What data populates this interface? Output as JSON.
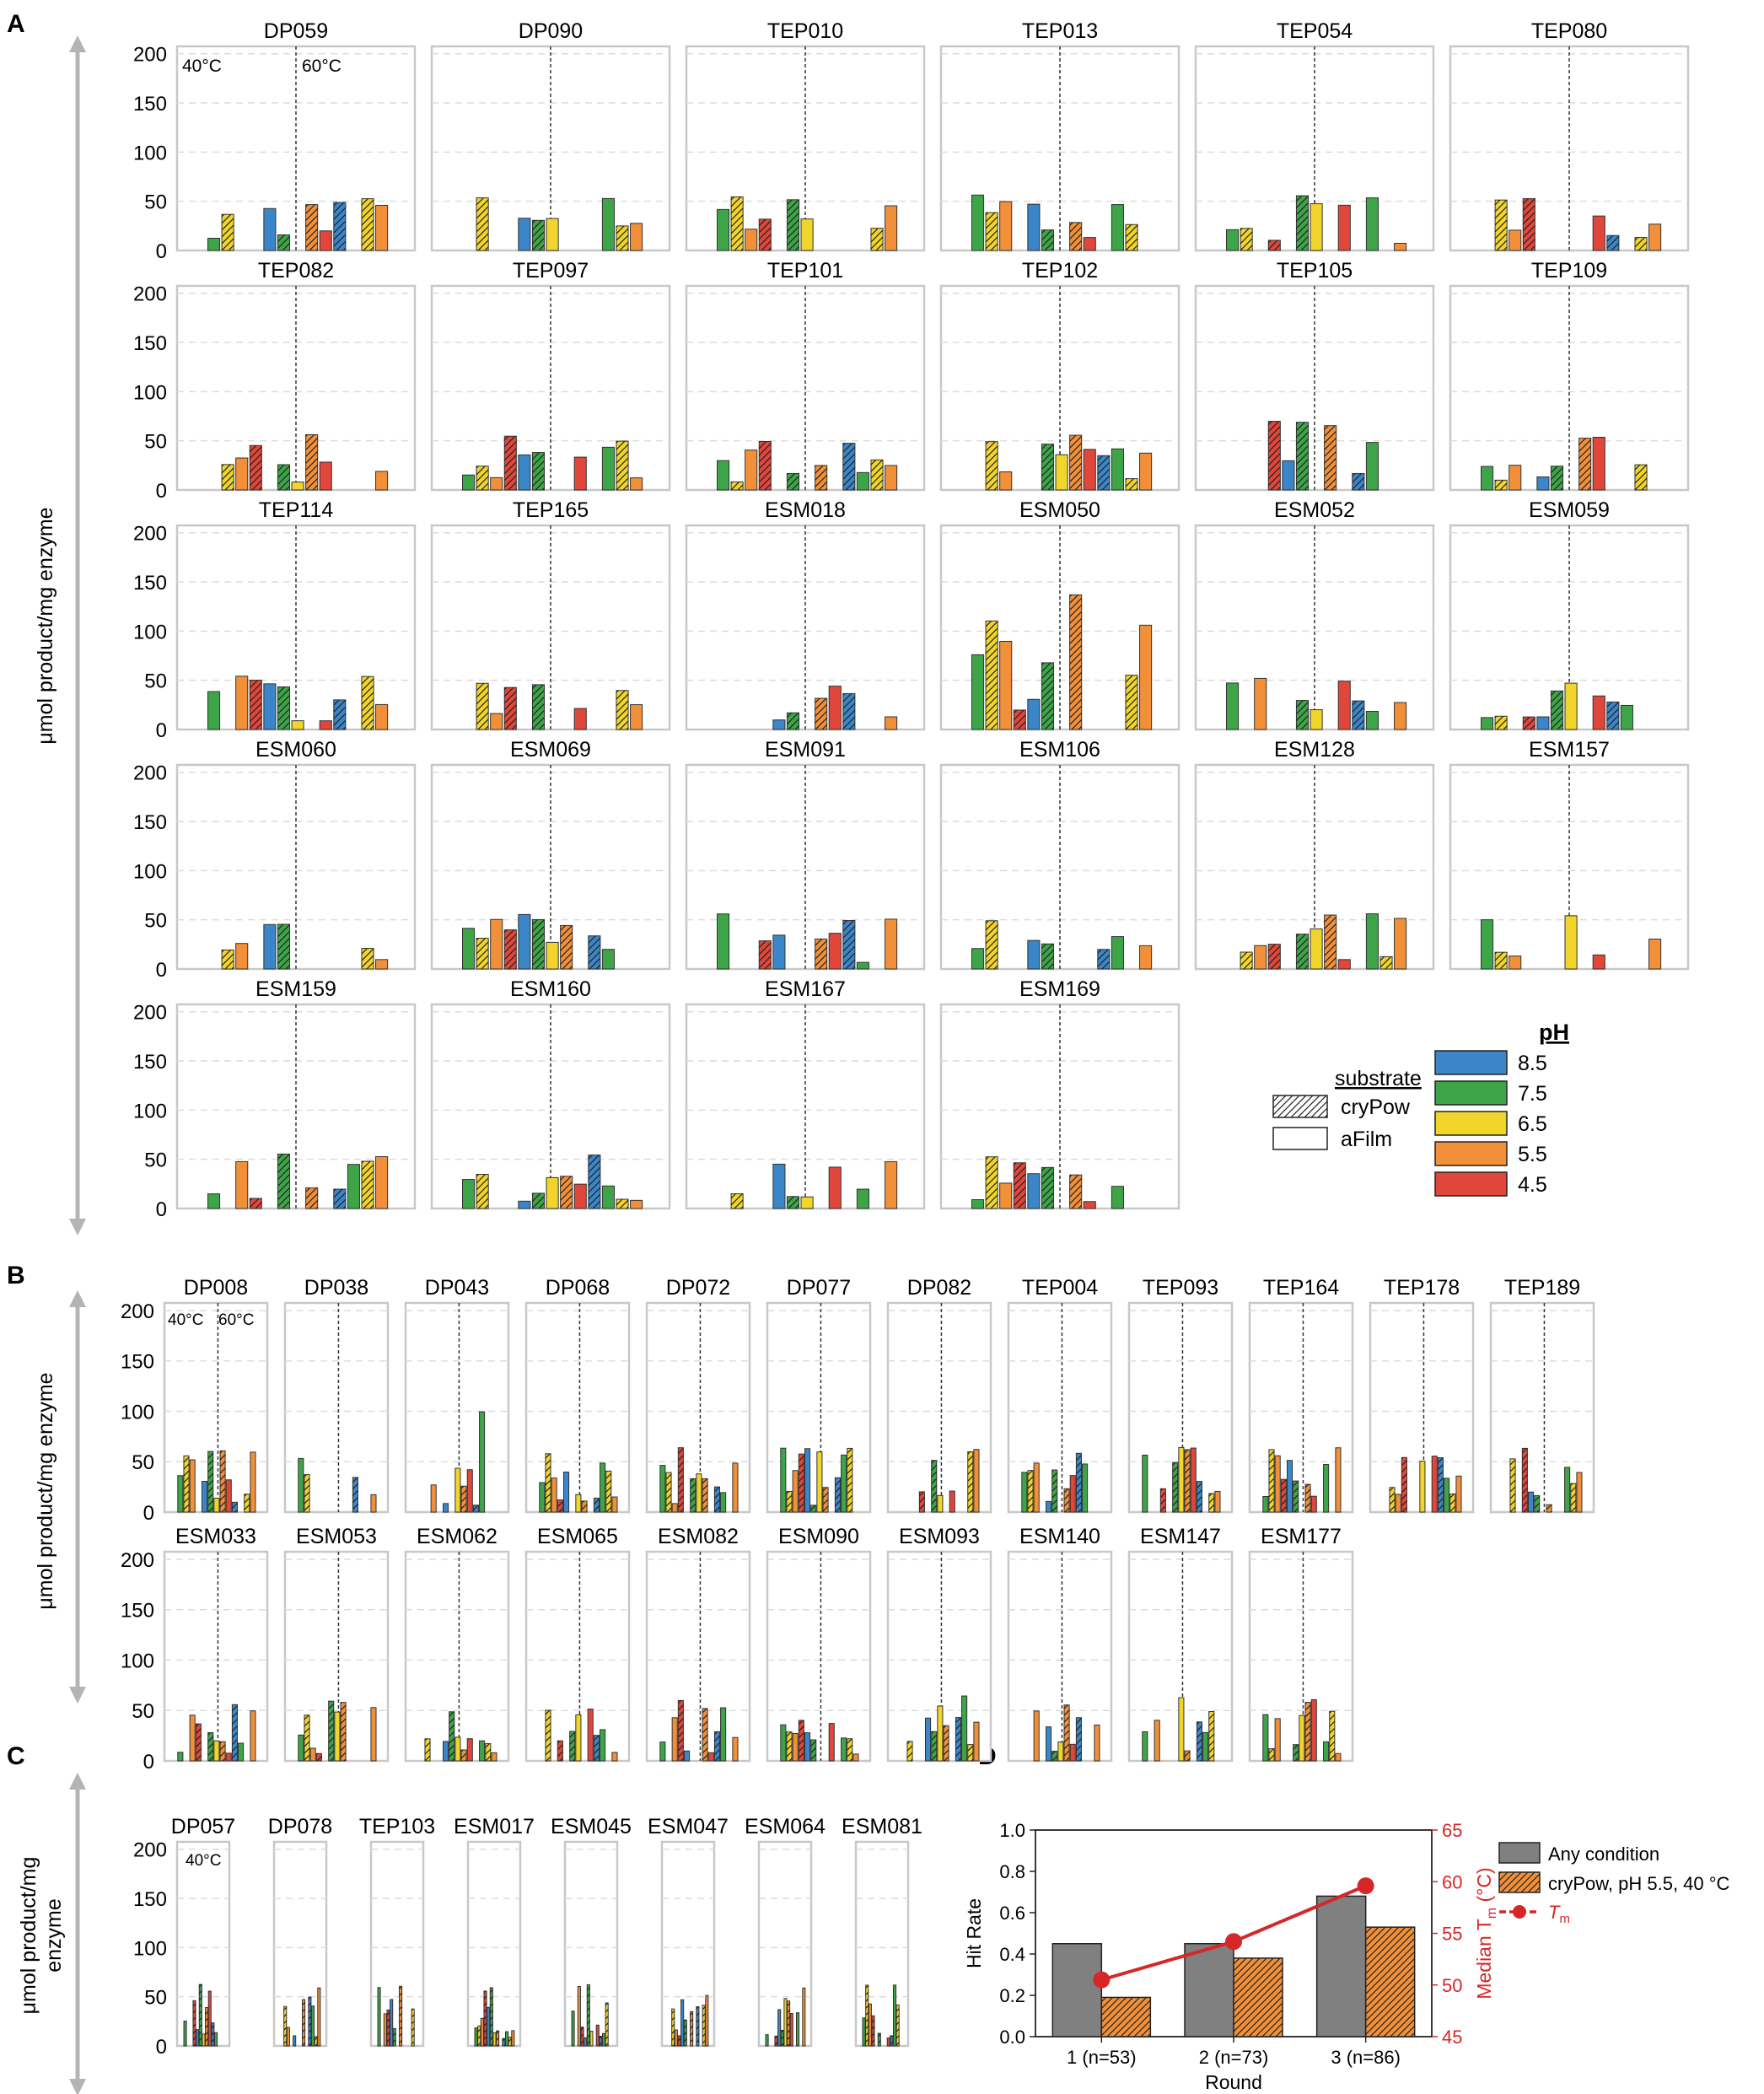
{
  "colors": {
    "ph_8_5": "#3a86c8",
    "ph_7_5": "#3da548",
    "ph_6_5": "#f2d52a",
    "ph_5_5": "#f2903a",
    "ph_4_5": "#e0463a",
    "grey_bar": "#808080",
    "tm_line": "#d62728",
    "frame": "#c8c8c8",
    "arrow": "#b4b4b4"
  },
  "texts": {
    "panel_letters": [
      "A",
      "B",
      "C",
      "D"
    ],
    "ylabel_single": "μmol product/mg enzyme",
    "ylabel_c": [
      "μmol product/mg",
      "enzyme"
    ],
    "temp_40": "40°C",
    "temp_60": "60°C"
  },
  "legend_substrate": {
    "title": "substrate",
    "items": [
      "cryPow",
      "aFilm"
    ]
  },
  "legend_ph": {
    "title": "pH",
    "items": [
      "8.5",
      "7.5",
      "6.5",
      "5.5",
      "4.5"
    ]
  },
  "panel_a": {
    "yticks": [
      "0",
      "50",
      "100",
      "150",
      "200"
    ],
    "ylim": [
      0,
      200
    ],
    "enzymes": [
      "DP059",
      "DP090",
      "TEP010",
      "TEP013",
      "TEP054",
      "TEP080",
      "TEP082",
      "TEP097",
      "TEP101",
      "TEP102",
      "TEP105",
      "TEP109",
      "TEP114",
      "TEP165",
      "ESM018",
      "ESM050",
      "ESM052",
      "ESM059",
      "ESM060",
      "ESM069",
      "ESM091",
      "ESM106",
      "ESM128",
      "ESM157",
      "ESM159",
      "ESM160",
      "ESM167",
      "ESM169"
    ]
  },
  "panel_b": {
    "yticks": [
      "0",
      "50",
      "100",
      "150",
      "200"
    ],
    "enzymes": [
      "DP008",
      "DP038",
      "DP043",
      "DP068",
      "DP072",
      "DP077",
      "DP082",
      "TEP004",
      "TEP093",
      "TEP164",
      "TEP178",
      "TEP189",
      "ESM033",
      "ESM053",
      "ESM062",
      "ESM065",
      "ESM082",
      "ESM090",
      "ESM093",
      "ESM140",
      "ESM147",
      "ESM177"
    ]
  },
  "panel_c": {
    "yticks": [
      "0",
      "50",
      "100",
      "150",
      "200"
    ],
    "enzymes": [
      "DP057",
      "DP078",
      "TEP103",
      "ESM017",
      "ESM045",
      "ESM047",
      "ESM064",
      "ESM081"
    ]
  },
  "chart_data": {
    "type": "bar",
    "categories": [
      "1 (n=53)",
      "2 (n=73)",
      "3 (n=86)"
    ],
    "xlabel": "Round",
    "ylabel": "Hit Rate",
    "ylabel2": "Median T",
    "ylabel2_sub": "m",
    "ylabel2_unit": "(°C)",
    "ylim": [
      0,
      1.0
    ],
    "ylim2": [
      45,
      65
    ],
    "yticks": [
      "0.0",
      "0.2",
      "0.4",
      "0.6",
      "0.8",
      "1.0"
    ],
    "yticks2": [
      "45",
      "50",
      "55",
      "60",
      "65"
    ],
    "series": [
      {
        "name": "Any condition",
        "values": [
          0.45,
          0.45,
          0.68
        ]
      },
      {
        "name": "cryPow, pH 5.5, 40 °C",
        "values": [
          0.19,
          0.38,
          0.53
        ]
      }
    ],
    "line": {
      "name": "T",
      "sub": "m",
      "values": [
        50.5,
        54.2,
        59.6
      ]
    },
    "legend_position": "right"
  }
}
